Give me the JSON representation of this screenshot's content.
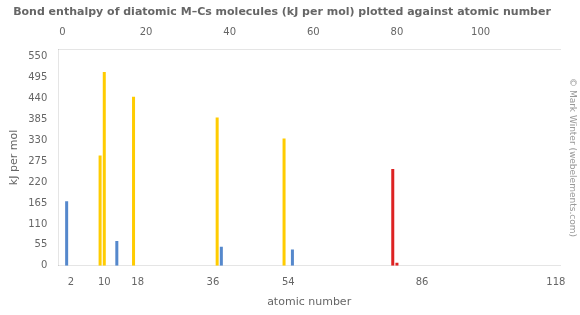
{
  "chart_data": {
    "type": "bar",
    "title": "Bond enthalpy of diatomic M–Cs molecules (kJ per mol) plotted against atomic number",
    "x_label": "atomic number",
    "y_label": "kJ per mol",
    "annotation": "© Mark Winter (webelements.com)",
    "x": [
      1,
      9,
      10,
      13,
      17,
      37,
      38,
      53,
      55,
      79,
      80
    ],
    "values": [
      170,
      290,
      510,
      65,
      445,
      390,
      50,
      335,
      43,
      255,
      8
    ],
    "colors": [
      "#5588cc",
      "#ffcc00",
      "#ffcc00",
      "#5588cc",
      "#ffcc00",
      "#ffcc00",
      "#5588cc",
      "#ffcc00",
      "#5588cc",
      "#dd2222",
      "#dd2222"
    ],
    "xlim": [
      -1,
      119
    ],
    "xticks": [
      0,
      20,
      40,
      60,
      80,
      100
    ],
    "x2ticks": [
      2,
      10,
      18,
      36,
      54,
      86,
      118
    ],
    "ylim": [
      0,
      570
    ],
    "yticks": [
      0,
      55,
      110,
      165,
      220,
      275,
      330,
      385,
      440,
      495,
      550
    ],
    "grid": false
  }
}
